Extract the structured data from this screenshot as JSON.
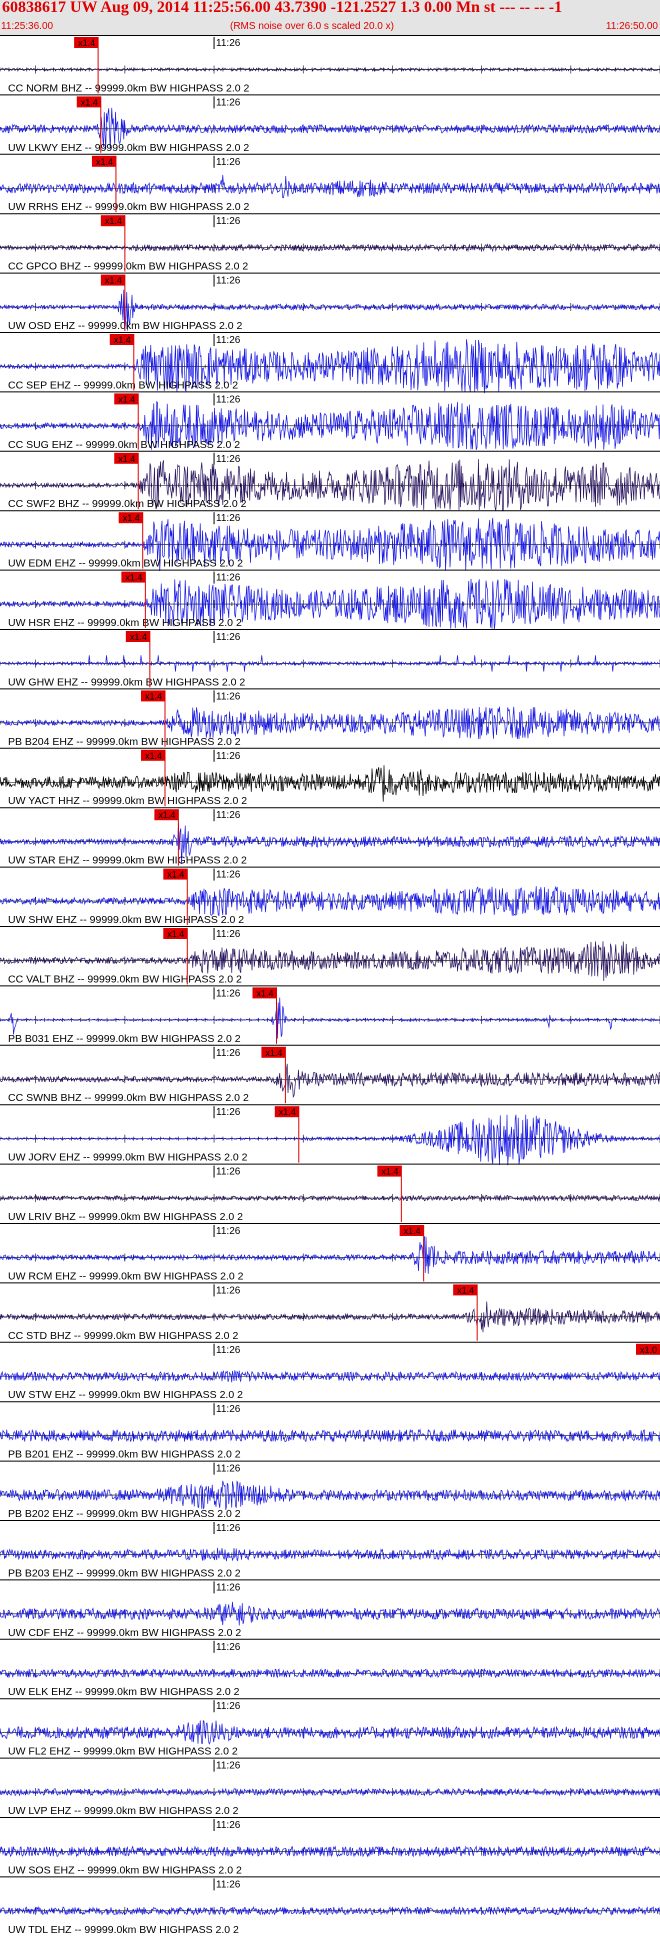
{
  "header": {
    "title": "60838617 UW Aug 09, 2014 11:25:56.00   43.7390 -121.2527  1.3 0.00 Mn st --- -- --  -1",
    "subtitle": "(RMS noise over 6.0 s scaled 20.0 x)",
    "start_time": "11:25:36.00",
    "end_time": "11:26:50.00"
  },
  "chart_data": {
    "type": "line",
    "x_unit": "seconds after 11:25:36.00",
    "x_range": [
      0,
      74
    ],
    "minute_tick_label": "11:26",
    "minute_tick_x": 24,
    "pick_label": "x1.4",
    "pick_last_label": "x1.0",
    "colors": {
      "red": "#e00000",
      "blue": "#1a1ae6",
      "dark": "#2a1660",
      "black": "#000000"
    },
    "traces": [
      {
        "label": "CC NORM BHZ -- 99999.0km BW  HIGHPASS  2.0  2",
        "pick": 11.0,
        "color": "dark",
        "onset": 11.0,
        "amp": 0.05,
        "burst": 0.05,
        "bursts": []
      },
      {
        "label": "UW LKWY EHZ -- 99999.0km BW  HIGHPASS  2.0  2",
        "pick": 11.3,
        "color": "blue",
        "onset": 11.3,
        "amp": 0.15,
        "burst": 0.15,
        "bursts": [
          [
            12.5,
            1.5,
            0.95
          ]
        ]
      },
      {
        "label": "UW RRHS EHZ -- 99999.0km BW  HIGHPASS  2.0  2",
        "pick": 13.0,
        "color": "blue",
        "onset": 13.0,
        "amp": 0.18,
        "burst": 0.2,
        "bursts": [
          [
            40,
            5,
            0.35
          ],
          [
            25,
            0.5,
            0.5
          ],
          [
            32,
            0.5,
            0.5
          ]
        ]
      },
      {
        "label": "CC GPCO BHZ -- 99999.0km BW  HIGHPASS  2.0  2",
        "pick": 14.0,
        "color": "dark",
        "onset": 14.0,
        "amp": 0.08,
        "burst": 0.12,
        "bursts": []
      },
      {
        "label": "UW OSD EHZ -- 99999.0km BW  HIGHPASS  2.0  2",
        "pick": 14.0,
        "color": "blue",
        "onset": 14.0,
        "amp": 0.07,
        "burst": 0.1,
        "bursts": [
          [
            14.2,
            0.8,
            0.9
          ]
        ]
      },
      {
        "label": "CC SEP EHZ -- 99999.0km BW  HIGHPASS  2.0  2",
        "pick": 15.0,
        "color": "blue",
        "onset": 15.0,
        "amp": 0.08,
        "burst": 1.0,
        "bursts": [
          [
            67,
            6,
            1.0
          ]
        ]
      },
      {
        "label": "CC SUG EHZ -- 99999.0km BW  HIGHPASS  2.0  2",
        "pick": 15.5,
        "color": "blue",
        "onset": 15.5,
        "amp": 0.1,
        "burst": 0.9,
        "bursts": [
          [
            68,
            5,
            0.9
          ]
        ]
      },
      {
        "label": "CC SWF2 BHZ -- 99999.0km BW  HIGHPASS  2.0  2",
        "pick": 15.5,
        "color": "dark",
        "onset": 15.5,
        "amp": 0.08,
        "burst": 1.0,
        "bursts": [
          [
            68,
            5,
            0.9
          ]
        ]
      },
      {
        "label": "UW EDM EHZ -- 99999.0km BW  HIGHPASS  2.0  2",
        "pick": 16.0,
        "color": "blue",
        "onset": 16.0,
        "amp": 0.1,
        "burst": 1.0,
        "bursts": []
      },
      {
        "label": "UW HSR EHZ -- 99999.0km BW  HIGHPASS  2.0  2",
        "pick": 16.3,
        "color": "blue",
        "onset": 16.3,
        "amp": 0.1,
        "burst": 0.95,
        "bursts": []
      },
      {
        "label": "UW GHW EHZ -- 99999.0km BW  HIGHPASS  2.0  2",
        "pick": 16.8,
        "color": "blue",
        "onset": 16.8,
        "amp": 0.05,
        "burst": 0.06,
        "bursts": [],
        "spikes": 1.25
      },
      {
        "label": "PB B204 EHZ -- 99999.0km BW  HIGHPASS  2.0  2",
        "pick": 18.5,
        "color": "blue",
        "onset": 18.5,
        "amp": 0.1,
        "burst": 0.6,
        "bursts": []
      },
      {
        "label": "UW YACT HHZ -- 99999.0km BW  HIGHPASS  2.0  2",
        "pick": 18.5,
        "color": "black",
        "onset": 18.5,
        "amp": 0.22,
        "burst": 0.4,
        "bursts": [
          [
            43,
            2.0,
            0.8
          ],
          [
            47,
            2.0,
            0.55
          ]
        ]
      },
      {
        "label": "UW STAR EHZ -- 99999.0km BW  HIGHPASS  2.0  2",
        "pick": 20.0,
        "color": "blue",
        "onset": 20.0,
        "amp": 0.1,
        "burst": 0.2,
        "bursts": [
          [
            20.5,
            1.0,
            0.95
          ]
        ]
      },
      {
        "label": "UW SHW EHZ -- 99999.0km BW  HIGHPASS  2.0  2",
        "pick": 21.0,
        "color": "blue",
        "onset": 21.0,
        "amp": 0.12,
        "burst": 0.55,
        "bursts": []
      },
      {
        "label": "CC VALT BHZ -- 99999.0km BW  HIGHPASS  2.0  2",
        "pick": 21.0,
        "color": "dark",
        "onset": 21.0,
        "amp": 0.12,
        "burst": 0.5,
        "bursts": [
          [
            68,
            5,
            0.8
          ]
        ]
      },
      {
        "label": "PB B031 EHZ -- 99999.0km BW  HIGHPASS  2.0  2",
        "pick": 31.0,
        "color": "blue",
        "onset": 31.0,
        "amp": 0.03,
        "burst": 0.05,
        "bursts": [
          [
            1.5,
            0.3,
            0.55
          ],
          [
            31.3,
            0.6,
            0.9
          ],
          [
            61.5,
            0.2,
            0.4
          ],
          [
            68.5,
            0.2,
            0.4
          ]
        ]
      },
      {
        "label": "CC SWNB BHZ -- 99999.0km BW  HIGHPASS  2.0  2",
        "pick": 32.0,
        "color": "dark",
        "onset": 32.0,
        "amp": 0.1,
        "burst": 0.25,
        "bursts": [
          [
            32.5,
            1.5,
            0.75
          ]
        ]
      },
      {
        "label": "UW JORV EHZ -- 99999.0km BW  HIGHPASS  2.0  2",
        "pick": 33.5,
        "color": "blue",
        "onset": 33.5,
        "amp": 0.03,
        "burst": 0.06,
        "bursts": [
          [
            57,
            8,
            1.0
          ]
        ]
      },
      {
        "label": "UW LRIV BHZ -- 99999.0km BW  HIGHPASS  2.0  2",
        "pick": 45.0,
        "color": "dark",
        "onset": 45.0,
        "amp": 0.08,
        "burst": 0.1,
        "bursts": []
      },
      {
        "label": "UW RCM EHZ -- 99999.0km BW  HIGHPASS  2.0  2",
        "pick": 47.5,
        "color": "blue",
        "onset": 47.5,
        "amp": 0.1,
        "burst": 0.25,
        "bursts": [
          [
            47.8,
            1.2,
            0.95
          ]
        ]
      },
      {
        "label": "CC STD BHZ -- 99999.0km BW  HIGHPASS  2.0  2",
        "pick": 53.5,
        "color": "dark",
        "onset": 53.5,
        "amp": 0.1,
        "burst": 0.35,
        "bursts": [
          [
            54.5,
            2.0,
            0.6
          ]
        ]
      },
      {
        "label": "UW STW EHZ -- 99999.0km BW  HIGHPASS  2.0  2",
        "pick": 74.0,
        "color": "blue",
        "onset": 74.0,
        "amp": 0.16,
        "burst": 0.16,
        "bursts": [
          [
            27,
            4,
            0.25
          ]
        ]
      },
      {
        "label": "PB B201 EHZ -- 99999.0km BW  HIGHPASS  2.0  2",
        "pick": null,
        "color": "blue",
        "onset": 74.0,
        "amp": 0.22,
        "burst": 0.22,
        "bursts": []
      },
      {
        "label": "PB B202 EHZ -- 99999.0km BW  HIGHPASS  2.0  2",
        "pick": null,
        "color": "blue",
        "onset": 74.0,
        "amp": 0.2,
        "burst": 0.2,
        "bursts": [
          [
            25,
            8,
            0.55
          ]
        ]
      },
      {
        "label": "PB B203 EHZ -- 99999.0km BW  HIGHPASS  2.0  2",
        "pick": null,
        "color": "blue",
        "onset": 74.0,
        "amp": 0.18,
        "burst": 0.18,
        "bursts": [
          [
            24,
            8,
            0.25
          ]
        ]
      },
      {
        "label": "UW CDF EHZ -- 99999.0km BW  HIGHPASS  2.0  2",
        "pick": null,
        "color": "blue",
        "onset": 74.0,
        "amp": 0.2,
        "burst": 0.2,
        "bursts": [
          [
            26,
            4,
            0.45
          ]
        ]
      },
      {
        "label": "UW ELK EHZ -- 99999.0km BW  HIGHPASS  2.0  2",
        "pick": null,
        "color": "blue",
        "onset": 74.0,
        "amp": 0.15,
        "burst": 0.15,
        "bursts": []
      },
      {
        "label": "UW FL2 EHZ -- 99999.0km BW  HIGHPASS  2.0  2",
        "pick": null,
        "color": "blue",
        "onset": 74.0,
        "amp": 0.22,
        "burst": 0.22,
        "bursts": [
          [
            23,
            4,
            0.5
          ]
        ]
      },
      {
        "label": "UW LVP EHZ -- 99999.0km BW  HIGHPASS  2.0  2",
        "pick": null,
        "color": "blue",
        "onset": 74.0,
        "amp": 0.12,
        "burst": 0.12,
        "bursts": []
      },
      {
        "label": "UW SOS EHZ -- 99999.0km BW  HIGHPASS  2.0  2",
        "pick": null,
        "color": "blue",
        "onset": 74.0,
        "amp": 0.18,
        "burst": 0.18,
        "bursts": []
      },
      {
        "label": "UW TDL EHZ -- 99999.0km BW  HIGHPASS  2.0  2",
        "pick": null,
        "color": "blue",
        "onset": 74.0,
        "amp": 0.14,
        "burst": 0.14,
        "bursts": []
      }
    ]
  }
}
